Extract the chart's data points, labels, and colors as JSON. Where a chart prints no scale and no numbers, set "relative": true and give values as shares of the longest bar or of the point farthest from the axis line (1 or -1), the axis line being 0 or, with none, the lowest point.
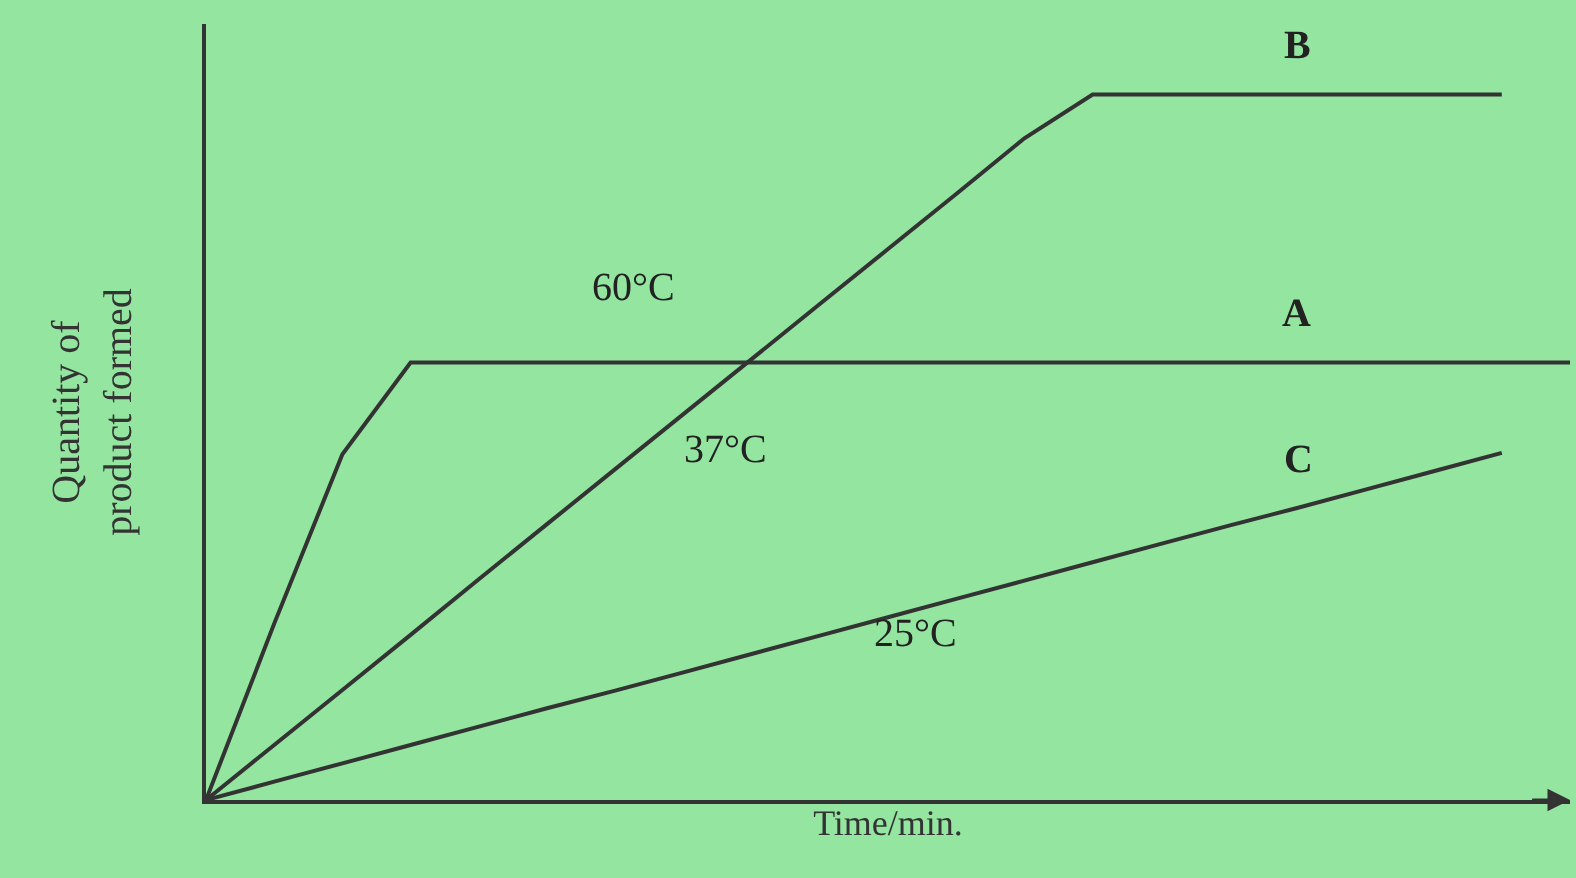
{
  "chart_data": {
    "type": "line",
    "relative": true,
    "xlabel": "Time/min.",
    "ylabel": "Quantity of\nproduct formed",
    "tick_labels": false,
    "grid": false,
    "legend": false,
    "marker": "none",
    "line_style": "solid",
    "categories": [
      null,
      null,
      null,
      null,
      null,
      null,
      null,
      null,
      null,
      null,
      null,
      null,
      null,
      null,
      null,
      null,
      null,
      null,
      null,
      null,
      null
    ],
    "series": [
      {
        "name": "B",
        "color": "#333333",
        "values": [
          0,
          0.078,
          0.156,
          0.234,
          0.313,
          0.391,
          0.469,
          0.547,
          0.625,
          0.703,
          0.781,
          0.859,
          0.938,
          1,
          1,
          1,
          1,
          1,
          1,
          1,
          null
        ]
      },
      {
        "name": "A",
        "color": "#333333",
        "values": [
          0,
          0.25,
          0.49,
          0.62,
          0.62,
          0.62,
          0.62,
          0.62,
          0.62,
          0.62,
          0.62,
          0.62,
          0.62,
          0.62,
          0.62,
          0.62,
          0.62,
          0.62,
          0.62,
          0.62,
          0.62
        ]
      },
      {
        "name": "C",
        "color": "#333333",
        "values": [
          0,
          0.026,
          0.052,
          0.078,
          0.104,
          0.13,
          0.155,
          0.181,
          0.207,
          0.233,
          0.259,
          0.285,
          0.311,
          0.337,
          0.363,
          0.389,
          0.414,
          0.44,
          0.466,
          0.492,
          null
        ]
      }
    ],
    "annotations": [
      "60°C",
      "37°C",
      "25°C"
    ]
  }
}
